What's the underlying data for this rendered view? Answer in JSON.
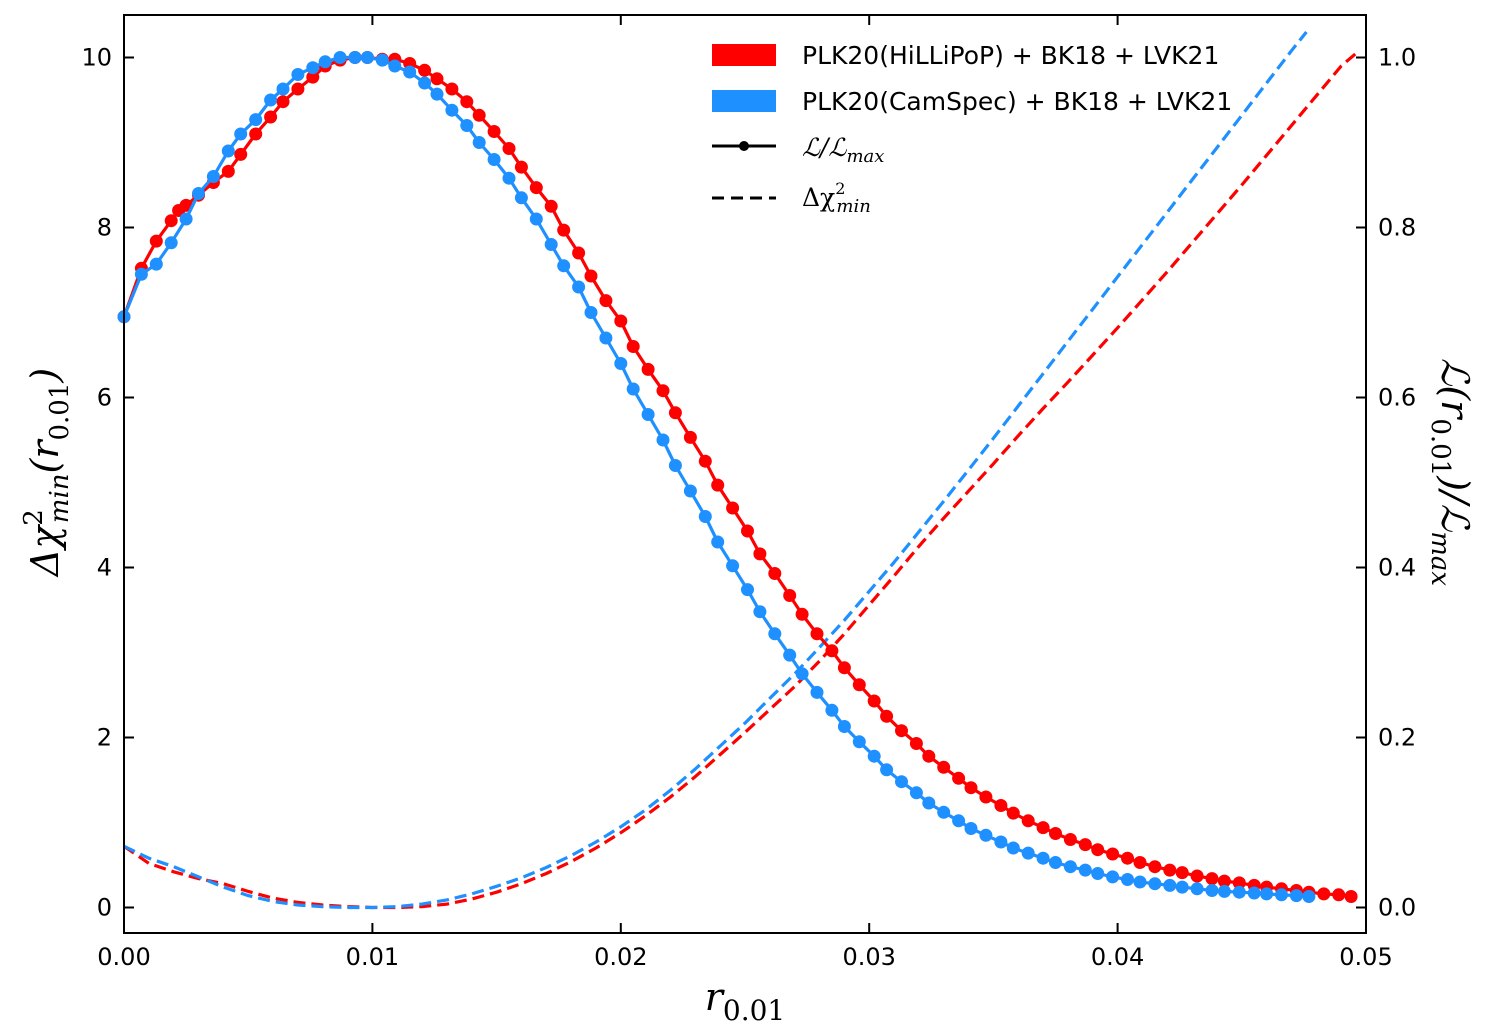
{
  "chart_data": {
    "type": "line",
    "xlabel_main": "r",
    "xlabel_sub": "0.01",
    "ylabel_left_main": "Δχ",
    "ylabel_left_sup": "2",
    "ylabel_left_sub": "min",
    "ylabel_left_arg": "(r",
    "ylabel_left_arg_sub": "0.01",
    "ylabel_left_close": ")",
    "ylabel_right_main": "ℒ(r",
    "ylabel_right_sub": "0.01",
    "ylabel_right_mid": ")/ℒ",
    "ylabel_right_sub2": "max",
    "xlim": [
      0.0,
      0.05
    ],
    "ylim_left": [
      -0.3,
      10.5
    ],
    "ylim_right": [
      -0.03,
      1.05
    ],
    "x_ticks": [
      0.0,
      0.01,
      0.02,
      0.03,
      0.04,
      0.05
    ],
    "x_tick_labels": [
      "0.00",
      "0.01",
      "0.02",
      "0.03",
      "0.04",
      "0.05"
    ],
    "y_left_ticks": [
      0,
      2,
      4,
      6,
      8,
      10
    ],
    "y_left_tick_labels": [
      "0",
      "2",
      "4",
      "6",
      "8",
      "10"
    ],
    "y_right_ticks": [
      0.0,
      0.2,
      0.4,
      0.6,
      0.8,
      1.0
    ],
    "y_right_tick_labels": [
      "0.0",
      "0.2",
      "0.4",
      "0.6",
      "0.8",
      "1.0"
    ],
    "legend": {
      "position": "top-right",
      "entries": [
        {
          "label": "PLK20(HiLLiPoP) + BK18 + LVK21",
          "style": "patch",
          "color": "#ff0000"
        },
        {
          "label": "PLK20(CamSpec) + BK18 + LVK21",
          "style": "patch",
          "color": "#1e90ff"
        },
        {
          "label_main": "ℒ/ℒ",
          "label_sub": "max",
          "style": "solid-marker",
          "color": "#000000"
        },
        {
          "label_main": "Δχ",
          "label_sup": "2",
          "label_sub": "min",
          "style": "dashed",
          "color": "#000000"
        }
      ]
    },
    "series": [
      {
        "name": "PLK20(HiLLiPoP) + BK18 + LVK21 likelihood",
        "axis": "right",
        "style": "solid-marker",
        "color": "#ff0000",
        "x": [
          0.0,
          0.0007,
          0.0013,
          0.0019,
          0.0022,
          0.0025,
          0.003,
          0.0036,
          0.0042,
          0.0047,
          0.0053,
          0.0059,
          0.0064,
          0.007,
          0.0076,
          0.0081,
          0.0087,
          0.0093,
          0.0098,
          0.0104,
          0.0109,
          0.0115,
          0.0121,
          0.0126,
          0.0132,
          0.0138,
          0.0143,
          0.0149,
          0.0155,
          0.016,
          0.0166,
          0.0172,
          0.0177,
          0.0183,
          0.0188,
          0.0194,
          0.02,
          0.0205,
          0.0211,
          0.0217,
          0.0222,
          0.0228,
          0.0234,
          0.0239,
          0.0245,
          0.0251,
          0.0256,
          0.0262,
          0.0268,
          0.0273,
          0.0279,
          0.0285,
          0.029,
          0.0296,
          0.0302,
          0.0307,
          0.0313,
          0.0319,
          0.0324,
          0.033,
          0.0336,
          0.0341,
          0.0347,
          0.0353,
          0.0358,
          0.0364,
          0.037,
          0.0375,
          0.0381,
          0.0387,
          0.0392,
          0.0398,
          0.0404,
          0.0409,
          0.0415,
          0.0421,
          0.0426,
          0.0432,
          0.0438,
          0.0443,
          0.0449,
          0.0455,
          0.046,
          0.0466,
          0.0472,
          0.0477,
          0.0483,
          0.0489,
          0.0494
        ],
        "values": [
          0.695,
          0.752,
          0.784,
          0.808,
          0.82,
          0.826,
          0.838,
          0.853,
          0.866,
          0.886,
          0.91,
          0.93,
          0.948,
          0.963,
          0.977,
          0.99,
          0.997,
          1.0,
          1.0,
          0.998,
          0.998,
          0.993,
          0.985,
          0.975,
          0.963,
          0.948,
          0.932,
          0.913,
          0.893,
          0.871,
          0.847,
          0.825,
          0.797,
          0.77,
          0.743,
          0.714,
          0.69,
          0.66,
          0.633,
          0.608,
          0.582,
          0.553,
          0.525,
          0.497,
          0.47,
          0.443,
          0.416,
          0.393,
          0.367,
          0.345,
          0.322,
          0.302,
          0.282,
          0.262,
          0.243,
          0.225,
          0.208,
          0.193,
          0.178,
          0.165,
          0.152,
          0.141,
          0.13,
          0.12,
          0.111,
          0.102,
          0.094,
          0.087,
          0.08,
          0.074,
          0.068,
          0.063,
          0.058,
          0.053,
          0.048,
          0.044,
          0.041,
          0.037,
          0.034,
          0.031,
          0.029,
          0.026,
          0.024,
          0.022,
          0.02,
          0.018,
          0.016,
          0.015,
          0.013
        ]
      },
      {
        "name": "PLK20(CamSpec) + BK18 + LVK21 likelihood",
        "axis": "right",
        "style": "solid-marker",
        "color": "#1e90ff",
        "x": [
          0.0,
          0.0007,
          0.0013,
          0.0019,
          0.0025,
          0.003,
          0.0036,
          0.0042,
          0.0047,
          0.0053,
          0.0059,
          0.0064,
          0.007,
          0.0076,
          0.0081,
          0.0087,
          0.0093,
          0.0098,
          0.0104,
          0.0109,
          0.0115,
          0.0121,
          0.0126,
          0.0132,
          0.0138,
          0.0143,
          0.0149,
          0.0155,
          0.016,
          0.0166,
          0.0172,
          0.0177,
          0.0183,
          0.0188,
          0.0194,
          0.02,
          0.0205,
          0.0211,
          0.0217,
          0.0222,
          0.0228,
          0.0234,
          0.0239,
          0.0245,
          0.0251,
          0.0256,
          0.0262,
          0.0268,
          0.0273,
          0.0279,
          0.0285,
          0.029,
          0.0296,
          0.0302,
          0.0307,
          0.0313,
          0.0319,
          0.0324,
          0.033,
          0.0336,
          0.0341,
          0.0347,
          0.0353,
          0.0358,
          0.0364,
          0.037,
          0.0375,
          0.0381,
          0.0387,
          0.0392,
          0.0398,
          0.0404,
          0.0409,
          0.0415,
          0.0421,
          0.0426,
          0.0432,
          0.0438,
          0.0443,
          0.0449,
          0.0455,
          0.046,
          0.0466,
          0.0472,
          0.0477
        ],
        "values": [
          0.695,
          0.745,
          0.757,
          0.782,
          0.81,
          0.84,
          0.86,
          0.89,
          0.91,
          0.927,
          0.95,
          0.963,
          0.98,
          0.988,
          0.995,
          1.0,
          1.0,
          1.0,
          0.997,
          0.99,
          0.983,
          0.97,
          0.957,
          0.938,
          0.92,
          0.9,
          0.88,
          0.858,
          0.835,
          0.81,
          0.78,
          0.755,
          0.73,
          0.7,
          0.67,
          0.64,
          0.61,
          0.58,
          0.55,
          0.52,
          0.49,
          0.46,
          0.43,
          0.402,
          0.374,
          0.348,
          0.322,
          0.297,
          0.275,
          0.253,
          0.232,
          0.213,
          0.195,
          0.178,
          0.162,
          0.148,
          0.135,
          0.123,
          0.112,
          0.102,
          0.093,
          0.085,
          0.077,
          0.07,
          0.064,
          0.058,
          0.053,
          0.048,
          0.044,
          0.04,
          0.036,
          0.033,
          0.03,
          0.028,
          0.026,
          0.024,
          0.022,
          0.02,
          0.019,
          0.018,
          0.017,
          0.016,
          0.015,
          0.014,
          0.013
        ]
      },
      {
        "name": "PLK20(HiLLiPoP) + BK18 + LVK21 Δχ²",
        "axis": "left",
        "style": "dashed",
        "color": "#ff0000",
        "x": [
          0.0,
          0.001,
          0.002,
          0.003,
          0.004,
          0.005,
          0.006,
          0.007,
          0.008,
          0.009,
          0.01,
          0.011,
          0.012,
          0.013,
          0.014,
          0.015,
          0.016,
          0.017,
          0.018,
          0.019,
          0.02,
          0.021,
          0.022,
          0.023,
          0.024,
          0.025,
          0.026,
          0.027,
          0.028,
          0.029,
          0.03,
          0.031,
          0.032,
          0.033,
          0.034,
          0.035,
          0.036,
          0.037,
          0.038,
          0.039,
          0.04,
          0.041,
          0.042,
          0.043,
          0.044,
          0.045,
          0.046,
          0.047,
          0.048,
          0.049,
          0.0496
        ],
        "values": [
          0.72,
          0.52,
          0.42,
          0.34,
          0.28,
          0.19,
          0.11,
          0.06,
          0.03,
          0.01,
          0.0,
          0.0,
          0.01,
          0.04,
          0.1,
          0.18,
          0.28,
          0.4,
          0.54,
          0.7,
          0.88,
          1.08,
          1.3,
          1.54,
          1.8,
          2.06,
          2.33,
          2.6,
          2.9,
          3.22,
          3.56,
          3.9,
          4.25,
          4.58,
          4.9,
          5.22,
          5.55,
          5.87,
          6.18,
          6.5,
          6.82,
          7.15,
          7.48,
          7.82,
          8.16,
          8.5,
          8.85,
          9.2,
          9.55,
          9.9,
          10.05
        ]
      },
      {
        "name": "PLK20(CamSpec) + BK18 + LVK21 Δχ²",
        "axis": "left",
        "style": "dashed",
        "color": "#1e90ff",
        "x": [
          0.0,
          0.001,
          0.002,
          0.003,
          0.004,
          0.005,
          0.006,
          0.007,
          0.008,
          0.009,
          0.01,
          0.011,
          0.012,
          0.013,
          0.014,
          0.015,
          0.016,
          0.017,
          0.018,
          0.019,
          0.02,
          0.021,
          0.022,
          0.023,
          0.024,
          0.025,
          0.026,
          0.027,
          0.028,
          0.029,
          0.03,
          0.031,
          0.032,
          0.033,
          0.034,
          0.035,
          0.036,
          0.037,
          0.038,
          0.039,
          0.04,
          0.041,
          0.042,
          0.043,
          0.044,
          0.045,
          0.046,
          0.047,
          0.0476
        ],
        "values": [
          0.72,
          0.58,
          0.48,
          0.36,
          0.24,
          0.14,
          0.07,
          0.03,
          0.01,
          0.0,
          0.0,
          0.01,
          0.04,
          0.09,
          0.16,
          0.25,
          0.35,
          0.47,
          0.61,
          0.77,
          0.95,
          1.15,
          1.38,
          1.63,
          1.9,
          2.17,
          2.46,
          2.75,
          3.06,
          3.38,
          3.72,
          4.06,
          4.42,
          4.78,
          5.15,
          5.52,
          5.9,
          6.28,
          6.66,
          7.04,
          7.42,
          7.8,
          8.18,
          8.56,
          8.94,
          9.32,
          9.7,
          10.08,
          10.3
        ]
      }
    ]
  }
}
